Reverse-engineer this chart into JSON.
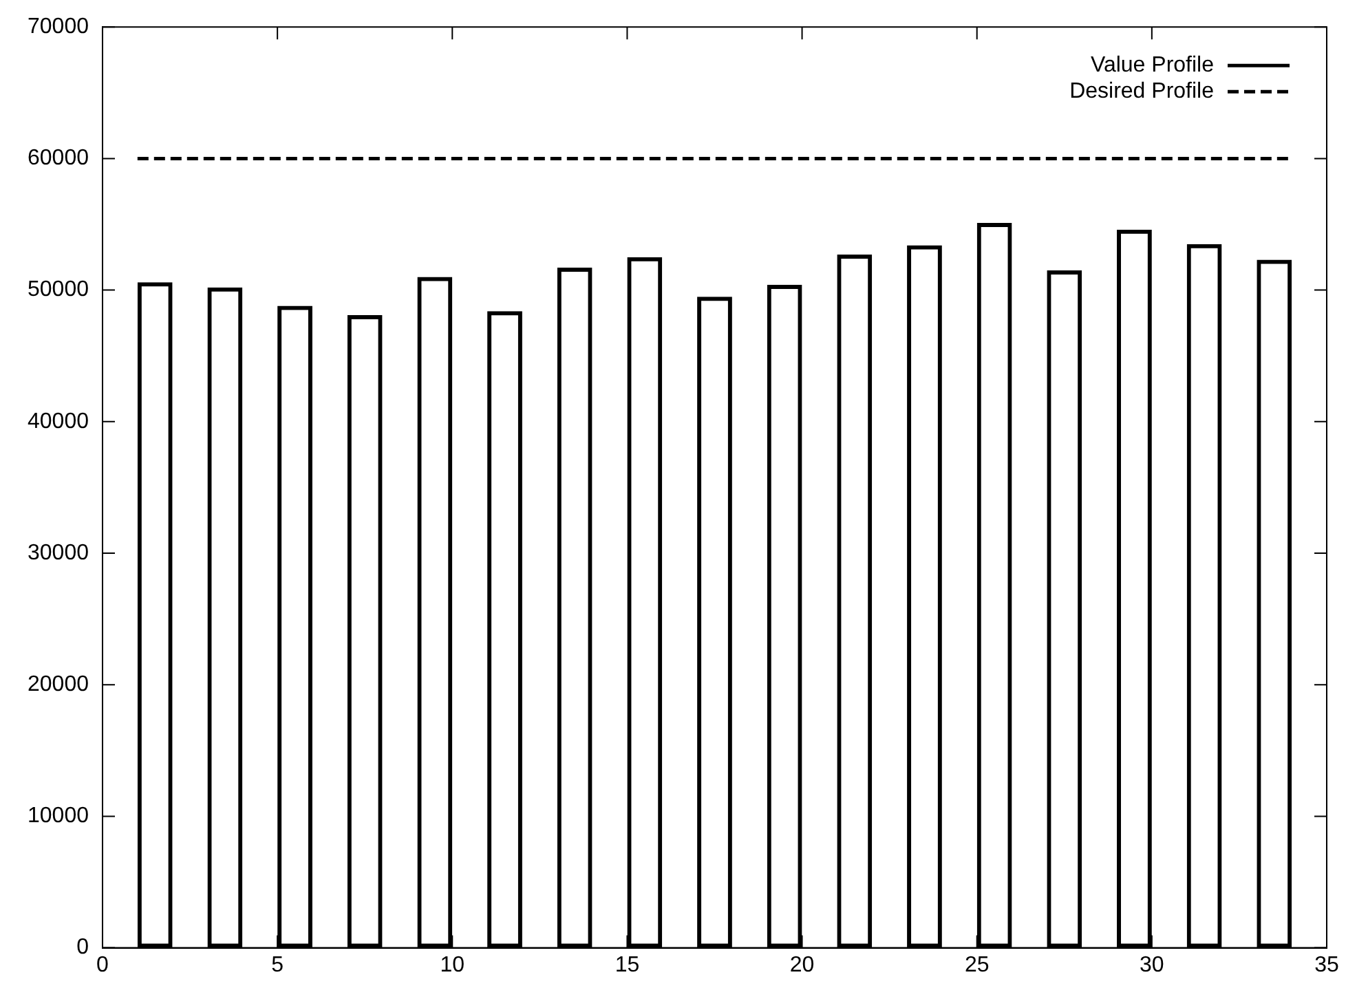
{
  "chart_data": {
    "type": "bar",
    "x": [
      1.5,
      3.5,
      5.5,
      7.5,
      9.5,
      11.5,
      13.5,
      15.5,
      17.5,
      19.5,
      21.5,
      23.5,
      25.5,
      27.5,
      29.5,
      31.5,
      33.5
    ],
    "series": [
      {
        "name": "Value Profile",
        "color": "#000000",
        "values": [
          50600,
          50200,
          48800,
          48100,
          51000,
          48400,
          51700,
          52500,
          49500,
          50400,
          52700,
          53400,
          55100,
          51500,
          54600,
          53500,
          52300
        ]
      },
      {
        "name": "Desired Profile",
        "type": "line",
        "color": "#000000",
        "line_style": "dashed",
        "x": [
          1,
          34
        ],
        "values": [
          60000,
          60000
        ]
      }
    ],
    "xlim": [
      0,
      35
    ],
    "xticks": [
      0,
      5,
      10,
      15,
      20,
      25,
      30,
      35
    ],
    "ylim": [
      0,
      70000
    ],
    "yticks": [
      0,
      10000,
      20000,
      30000,
      40000,
      50000,
      60000,
      70000
    ],
    "grid": false,
    "legend": "top right"
  }
}
